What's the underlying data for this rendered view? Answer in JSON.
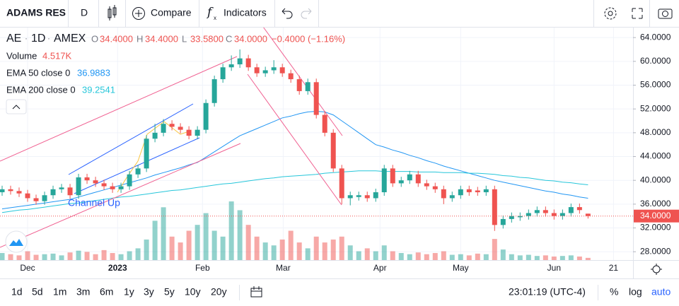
{
  "toolbar": {
    "symbol": "ADAMS RES",
    "interval": "D",
    "compare": "Compare",
    "indicators": "Indicators"
  },
  "footer": {
    "ranges": [
      "1d",
      "5d",
      "1m",
      "3m",
      "6m",
      "1y",
      "3y",
      "5y",
      "10y",
      "20y"
    ],
    "clock": "23:01:19 (UTC-4)",
    "percent": "%",
    "log": "log",
    "auto": "auto"
  },
  "chart_data": {
    "type": "candlestick",
    "ticker": "AE",
    "interval": "1D",
    "exchange": "AMEX",
    "ohlc_keys": [
      "O",
      "H",
      "L",
      "C"
    ],
    "ohlc_labels": [
      "34.4000",
      "34.4000",
      "33.5800",
      "34.0000"
    ],
    "change_label": "−0.4000 (−1.16%)",
    "price_label": "34.0000",
    "annotation": "Channel Up",
    "open": [
      38.0,
      38.5,
      38.2,
      37.8,
      37.0,
      36.5,
      37.5,
      38.5,
      38.8,
      37.5,
      40.5,
      40.0,
      39.5,
      39.0,
      38.5,
      39.0,
      41.0,
      42.0,
      47.0,
      48.0,
      49.5,
      49.0,
      48.5,
      47.5,
      48.5,
      53.0,
      57.0,
      59.0,
      59.5,
      60.5,
      59.0,
      58.0,
      58.5,
      59.0,
      58.0,
      57.0,
      55.0,
      56.5,
      51.0,
      48.0,
      42.0,
      37.0,
      37.2,
      37.5,
      37.0,
      38.0,
      42.0,
      39.5,
      40.0,
      41.0,
      39.5,
      39.0,
      38.5,
      37.0,
      37.5,
      38.5,
      38.3,
      38.0,
      38.5,
      32.5,
      33.5,
      33.8,
      34.0,
      34.5,
      35.0,
      34.5,
      34.0,
      34.5,
      35.5,
      34.4
    ],
    "high": [
      39.1,
      39.1,
      38.8,
      38.4,
      37.6,
      38.1,
      39.1,
      39.4,
      39.4,
      41.1,
      41.1,
      40.6,
      40.1,
      39.6,
      39.6,
      41.6,
      42.6,
      47.6,
      49.5,
      50.3,
      50.1,
      49.6,
      49.1,
      49.1,
      53.6,
      57.6,
      59.6,
      61.0,
      62.0,
      61.1,
      59.6,
      59.1,
      60.2,
      59.6,
      58.6,
      57.6,
      57.1,
      57.1,
      51.6,
      48.6,
      42.6,
      38.1,
      38.1,
      38.1,
      38.6,
      42.6,
      42.6,
      40.6,
      41.6,
      41.6,
      40.1,
      39.6,
      39.1,
      38.1,
      39.1,
      39.1,
      38.9,
      39.1,
      39.1,
      34.1,
      34.6,
      34.6,
      35.1,
      35.6,
      35.6,
      35.1,
      35.1,
      36.1,
      36.1,
      34.4
    ],
    "low": [
      37.4,
      37.6,
      37.2,
      36.4,
      35.9,
      35.9,
      36.9,
      37.9,
      36.9,
      36.9,
      39.4,
      38.9,
      38.4,
      37.9,
      37.9,
      38.4,
      40.4,
      41.4,
      46.4,
      47.4,
      48.4,
      47.9,
      46.9,
      46.9,
      47.9,
      52.4,
      56.4,
      58.4,
      58.9,
      58.4,
      57.4,
      57.4,
      57.9,
      57.4,
      56.4,
      54.4,
      54.4,
      50.4,
      47.4,
      41.4,
      36.0,
      35.8,
      36.6,
      36.4,
      36.4,
      37.4,
      38.9,
      38.9,
      39.4,
      38.9,
      38.4,
      37.9,
      36.0,
      36.4,
      36.9,
      37.4,
      37.4,
      37.4,
      31.5,
      31.9,
      32.9,
      33.2,
      33.4,
      33.9,
      33.9,
      33.4,
      33.4,
      33.9,
      34.4,
      33.58
    ],
    "close": [
      38.5,
      38.2,
      37.8,
      37.0,
      36.5,
      37.5,
      38.5,
      38.8,
      37.5,
      40.5,
      40.0,
      39.5,
      39.0,
      38.5,
      39.0,
      41.0,
      42.0,
      47.0,
      48.0,
      49.5,
      49.0,
      48.5,
      47.5,
      48.5,
      53.0,
      57.0,
      59.0,
      59.5,
      60.5,
      59.0,
      58.0,
      58.5,
      59.0,
      58.0,
      57.0,
      55.0,
      56.5,
      51.0,
      48.0,
      42.0,
      37.0,
      37.5,
      37.5,
      37.0,
      38.0,
      42.0,
      39.5,
      40.0,
      41.0,
      39.5,
      39.0,
      38.5,
      37.0,
      37.5,
      38.5,
      38.0,
      38.0,
      38.5,
      32.5,
      33.5,
      34.0,
      34.0,
      34.5,
      35.0,
      34.5,
      34.0,
      34.5,
      35.5,
      35.0,
      34.0
    ],
    "volume": {
      "name": "Volume",
      "value_label": "4.517K",
      "values": [
        14400,
        12000,
        9600,
        18000,
        10800,
        12000,
        13200,
        9600,
        15600,
        19200,
        16800,
        12000,
        20400,
        14400,
        12000,
        18000,
        24000,
        42000,
        80400,
        108000,
        48000,
        36000,
        60000,
        72000,
        96000,
        60000,
        48000,
        120000,
        102000,
        72000,
        48000,
        36000,
        30000,
        42000,
        60000,
        36000,
        24000,
        48000,
        36000,
        42000,
        48000,
        30000,
        18000,
        24000,
        18000,
        30000,
        18000,
        14400,
        12000,
        15600,
        12000,
        14400,
        18000,
        10800,
        12000,
        9600,
        13200,
        12000,
        43200,
        21600,
        12000,
        9600,
        10800,
        8400,
        9600,
        7200,
        8400,
        9600,
        7200,
        4517
      ]
    },
    "series": [
      {
        "name": "EMA 50 close 0",
        "color": "#2196f3",
        "value_label": "36.9883",
        "values": [
          35.2,
          35.4,
          35.6,
          35.8,
          36.0,
          36.2,
          36.4,
          36.6,
          36.8,
          37.2,
          37.6,
          38.0,
          38.4,
          38.8,
          39.2,
          39.6,
          40.0,
          40.4,
          40.9,
          41.3,
          41.7,
          42.1,
          42.6,
          43.0,
          43.9,
          44.8,
          45.7,
          46.6,
          47.5,
          48.1,
          48.7,
          49.3,
          49.9,
          50.5,
          50.8,
          51.2,
          51.5,
          51.6,
          51.5,
          51.0,
          50.0,
          49.0,
          48.0,
          47.0,
          46.0,
          45.6,
          45.1,
          44.7,
          44.2,
          43.8,
          43.3,
          42.9,
          42.4,
          42.0,
          41.6,
          41.2,
          40.8,
          40.4,
          40.0,
          39.7,
          39.4,
          39.1,
          38.8,
          38.5,
          38.2,
          38.0,
          37.7,
          37.5,
          37.2,
          36.9883
        ]
      },
      {
        "name": "EMA 200 close 0",
        "color": "#26c6da",
        "value_label": "39.2541",
        "values": [
          34.6,
          34.8,
          35.0,
          35.1,
          35.3,
          35.5,
          35.7,
          35.9,
          36.1,
          36.2,
          36.4,
          36.6,
          36.8,
          37.0,
          37.2,
          37.3,
          37.5,
          37.7,
          37.9,
          38.1,
          38.3,
          38.4,
          38.6,
          38.8,
          39.0,
          39.2,
          39.4,
          39.5,
          39.7,
          39.9,
          40.1,
          40.3,
          40.4,
          40.6,
          40.7,
          40.8,
          40.9,
          41.0,
          41.2,
          41.3,
          41.4,
          41.5,
          41.6,
          41.6,
          41.6,
          41.5,
          41.5,
          41.5,
          41.5,
          41.4,
          41.4,
          41.4,
          41.3,
          41.3,
          41.3,
          41.2,
          41.2,
          41.1,
          41.0,
          40.8,
          40.7,
          40.5,
          40.4,
          40.2,
          40.0,
          39.9,
          39.7,
          39.6,
          39.4,
          39.2541
        ]
      }
    ],
    "up_color": "#26a69a",
    "down_color": "#ef5350",
    "xlim": [
      -0.25,
      74.3
    ],
    "xticks": [
      {
        "value": 3,
        "label": "Dec"
      },
      {
        "value": 13.6,
        "label": "2023"
      },
      {
        "value": 23.6,
        "label": "Feb"
      },
      {
        "value": 33.1,
        "label": "Mar"
      },
      {
        "value": 44.5,
        "label": "Apr"
      },
      {
        "value": 54,
        "label": "May"
      },
      {
        "value": 65,
        "label": "Jun"
      },
      {
        "value": 72,
        "label": "21"
      }
    ],
    "ylim": [
      26.6,
      65.8
    ],
    "yticks": [
      {
        "value": 28,
        "label": "28.0000"
      },
      {
        "value": 32,
        "label": "32.0000"
      },
      {
        "value": 36,
        "label": "36.0000"
      },
      {
        "value": 40,
        "label": "40.0000"
      },
      {
        "value": 44,
        "label": "44.0000"
      },
      {
        "value": 48,
        "label": "48.0000"
      },
      {
        "value": 52,
        "label": "52.0000"
      },
      {
        "value": 56,
        "label": "56.0000"
      },
      {
        "value": 60,
        "label": "60.0000"
      },
      {
        "value": 64,
        "label": "64.0000"
      }
    ],
    "grid": true
  }
}
